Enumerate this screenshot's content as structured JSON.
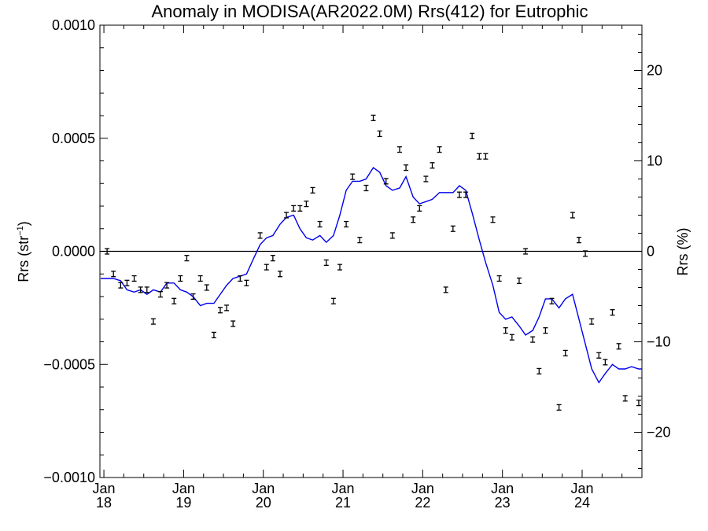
{
  "chart_data": {
    "type": "line",
    "title": "Anomaly in MODISA(AR2022.0M) Rrs(412) for Eutrophic",
    "ylabel": "Rrs (str",
    "ylabel_sup": "−1",
    "ylabel_close": ")",
    "y2label": "Rrs (%)",
    "xlim": [
      2017.95,
      2024.75
    ],
    "ylim": [
      -0.001,
      0.001
    ],
    "y2lim": [
      -25,
      25
    ],
    "y_ticks": [
      {
        "v": 0.001,
        "label": "0.0010"
      },
      {
        "v": 0.0005,
        "label": "0.0005"
      },
      {
        "v": 0.0,
        "label": "0.0000"
      },
      {
        "v": -0.0005,
        "label": "−0.0005"
      },
      {
        "v": -0.001,
        "label": "−0.0010"
      }
    ],
    "y2_ticks": [
      {
        "v": 20,
        "label": "20"
      },
      {
        "v": 10,
        "label": "10"
      },
      {
        "v": 0,
        "label": "0"
      },
      {
        "v": -10,
        "label": "−10"
      },
      {
        "v": -20,
        "label": "−20"
      }
    ],
    "x_ticks": [
      {
        "v": 2018,
        "month": "Jan",
        "year": "18"
      },
      {
        "v": 2019,
        "month": "Jan",
        "year": "19"
      },
      {
        "v": 2020,
        "month": "Jan",
        "year": "20"
      },
      {
        "v": 2021,
        "month": "Jan",
        "year": "21"
      },
      {
        "v": 2022,
        "month": "Jan",
        "year": "22"
      },
      {
        "v": 2023,
        "month": "Jan",
        "year": "23"
      },
      {
        "v": 2024,
        "month": "Jan",
        "year": "24"
      }
    ],
    "grid": false,
    "zero_line": true,
    "colors": {
      "line": "#0000ee",
      "points": "#000000",
      "axes": "#000000"
    },
    "series": [
      {
        "type": "line",
        "x": [
          2017.96,
          2018.04,
          2018.12,
          2018.21,
          2018.29,
          2018.38,
          2018.46,
          2018.54,
          2018.62,
          2018.71,
          2018.79,
          2018.88,
          2018.96,
          2019.04,
          2019.12,
          2019.21,
          2019.29,
          2019.38,
          2019.46,
          2019.54,
          2019.62,
          2019.71,
          2019.79,
          2019.88,
          2019.96,
          2020.04,
          2020.12,
          2020.21,
          2020.29,
          2020.38,
          2020.46,
          2020.54,
          2020.62,
          2020.71,
          2020.79,
          2020.88,
          2020.96,
          2021.04,
          2021.12,
          2021.21,
          2021.29,
          2021.38,
          2021.46,
          2021.54,
          2021.62,
          2021.71,
          2021.79,
          2021.88,
          2021.96,
          2022.04,
          2022.12,
          2022.21,
          2022.29,
          2022.38,
          2022.46,
          2022.54,
          2022.62,
          2022.71,
          2022.79,
          2022.88,
          2022.96,
          2023.04,
          2023.12,
          2023.21,
          2023.29,
          2023.38,
          2023.46,
          2023.54,
          2023.62,
          2023.71,
          2023.79,
          2023.88,
          2023.96,
          2024.04,
          2024.12,
          2024.21,
          2024.29,
          2024.38,
          2024.46,
          2024.54,
          2024.62,
          2024.71,
          2024.75
        ],
        "y": [
          -0.00012,
          -0.00012,
          -0.00012,
          -0.00013,
          -0.00017,
          -0.00018,
          -0.00017,
          -0.00019,
          -0.00017,
          -0.00018,
          -0.00014,
          -0.00014,
          -0.00017,
          -0.00018,
          -0.0002,
          -0.00024,
          -0.00023,
          -0.00023,
          -0.00019,
          -0.00015,
          -0.00012,
          -0.00011,
          -0.0001,
          -3e-05,
          3e-05,
          6e-05,
          7e-05,
          0.00012,
          0.00015,
          0.00016,
          0.0001,
          6e-05,
          5e-05,
          7e-05,
          4e-05,
          7e-05,
          0.00016,
          0.00027,
          0.00031,
          0.00031,
          0.00032,
          0.00037,
          0.00035,
          0.00029,
          0.00027,
          0.00028,
          0.00033,
          0.00024,
          0.00021,
          0.00022,
          0.00023,
          0.00026,
          0.00026,
          0.00026,
          0.00029,
          0.00027,
          0.00017,
          5e-05,
          -5e-05,
          -0.00015,
          -0.00027,
          -0.0003,
          -0.00029,
          -0.00033,
          -0.00037,
          -0.00035,
          -0.00029,
          -0.00021,
          -0.00021,
          -0.00025,
          -0.00021,
          -0.00019,
          -0.0003,
          -0.00041,
          -0.00052,
          -0.00058,
          -0.00054,
          -0.0005,
          -0.00052,
          -0.00052,
          -0.00051,
          -0.00052,
          -0.00052
        ]
      },
      {
        "type": "scatter",
        "error_bar": 1.2e-05,
        "points": [
          [
            2018.04,
            0.0
          ],
          [
            2018.12,
            -0.0001
          ],
          [
            2018.21,
            -0.00015
          ],
          [
            2018.29,
            -0.00014
          ],
          [
            2018.38,
            -0.00012
          ],
          [
            2018.46,
            -0.00017
          ],
          [
            2018.54,
            -0.00017
          ],
          [
            2018.62,
            -0.00031
          ],
          [
            2018.71,
            -0.00019
          ],
          [
            2018.79,
            -0.00015
          ],
          [
            2018.88,
            -0.00022
          ],
          [
            2018.96,
            -0.00012
          ],
          [
            2019.04,
            -3e-05
          ],
          [
            2019.12,
            -0.0002
          ],
          [
            2019.21,
            -0.00012
          ],
          [
            2019.29,
            -0.00016
          ],
          [
            2019.38,
            -0.00037
          ],
          [
            2019.46,
            -0.00026
          ],
          [
            2019.54,
            -0.00025
          ],
          [
            2019.62,
            -0.00032
          ],
          [
            2019.71,
            -0.00012
          ],
          [
            2019.79,
            -0.00014
          ],
          [
            2019.96,
            7e-05
          ],
          [
            2020.04,
            -7e-05
          ],
          [
            2020.12,
            -3e-05
          ],
          [
            2020.21,
            -0.0001
          ],
          [
            2020.29,
            0.00016
          ],
          [
            2020.38,
            0.00019
          ],
          [
            2020.46,
            0.00019
          ],
          [
            2020.54,
            0.00021
          ],
          [
            2020.62,
            0.00027
          ],
          [
            2020.71,
            0.00012
          ],
          [
            2020.79,
            -5e-05
          ],
          [
            2020.88,
            -0.00022
          ],
          [
            2020.96,
            -7e-05
          ],
          [
            2021.04,
            0.00012
          ],
          [
            2021.12,
            0.00033
          ],
          [
            2021.21,
            5e-05
          ],
          [
            2021.29,
            0.00028
          ],
          [
            2021.38,
            0.00059
          ],
          [
            2021.46,
            0.00052
          ],
          [
            2021.54,
            0.00031
          ],
          [
            2021.62,
            7e-05
          ],
          [
            2021.71,
            0.00045
          ],
          [
            2021.79,
            0.00037
          ],
          [
            2021.88,
            0.00014
          ],
          [
            2021.96,
            0.00019
          ],
          [
            2022.04,
            0.00032
          ],
          [
            2022.12,
            0.00038
          ],
          [
            2022.21,
            0.00045
          ],
          [
            2022.29,
            -0.00017
          ],
          [
            2022.38,
            0.0001
          ],
          [
            2022.46,
            0.00025
          ],
          [
            2022.54,
            0.00025
          ],
          [
            2022.62,
            0.00051
          ],
          [
            2022.71,
            0.00042
          ],
          [
            2022.79,
            0.00042
          ],
          [
            2022.88,
            0.00014
          ],
          [
            2022.96,
            -0.00012
          ],
          [
            2023.04,
            -0.00035
          ],
          [
            2023.12,
            -0.00038
          ],
          [
            2023.21,
            -0.00013
          ],
          [
            2023.29,
            0.0
          ],
          [
            2023.38,
            -0.00039
          ],
          [
            2023.46,
            -0.00053
          ],
          [
            2023.54,
            -0.00035
          ],
          [
            2023.62,
            -0.00022
          ],
          [
            2023.71,
            -0.00069
          ],
          [
            2023.79,
            -0.00045
          ],
          [
            2023.88,
            0.00016
          ],
          [
            2023.96,
            5e-05
          ],
          [
            2024.04,
            -1e-05
          ],
          [
            2024.12,
            -0.00031
          ],
          [
            2024.21,
            -0.00046
          ],
          [
            2024.29,
            -0.00049
          ],
          [
            2024.38,
            -0.00027
          ],
          [
            2024.46,
            -0.00042
          ],
          [
            2024.54,
            -0.00065
          ],
          [
            2024.71,
            -0.00067
          ]
        ]
      }
    ]
  }
}
